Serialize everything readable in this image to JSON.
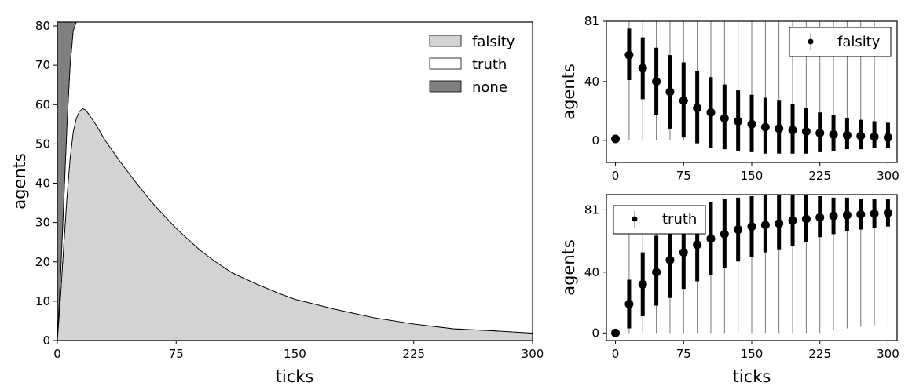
{
  "chart_data": [
    {
      "type": "area",
      "stacked": true,
      "xlabel": "ticks",
      "ylabel": "agents",
      "xlim": [
        0,
        300
      ],
      "ylim": [
        0,
        81
      ],
      "xticks": [
        "0",
        "75",
        "150",
        "225",
        "300"
      ],
      "yticks": [
        "0",
        "10",
        "20",
        "30",
        "40",
        "50",
        "60",
        "70",
        "80"
      ],
      "legend_position": "top-right",
      "x": [
        0,
        2,
        4,
        6,
        8,
        10,
        12,
        14,
        16,
        18,
        20,
        25,
        30,
        40,
        50,
        60,
        75,
        90,
        100,
        110,
        125,
        140,
        150,
        175,
        200,
        225,
        250,
        275,
        300
      ],
      "series": [
        {
          "name": "falsity",
          "color": "#d3d3d3",
          "values": [
            0,
            11,
            24,
            36,
            46,
            53,
            56.5,
            58.3,
            59,
            58.6,
            57.5,
            54.5,
            51,
            45.3,
            40,
            35,
            28.5,
            23,
            20,
            17.3,
            14.5,
            12,
            10.5,
            8,
            5.8,
            4.2,
            3,
            2.5,
            1.9
          ]
        },
        {
          "name": "truth",
          "color": "#ffffff",
          "values": [
            0,
            5,
            11,
            18,
            23.5,
            25.8,
            24.5,
            22.7,
            22,
            22.4,
            23.5,
            26.5,
            30,
            35.7,
            41,
            46,
            52.5,
            58,
            61,
            63.7,
            66.5,
            69,
            70.5,
            73,
            75.2,
            76.8,
            78,
            78.5,
            79.1
          ]
        },
        {
          "name": "none",
          "color": "#808080",
          "values": [
            81,
            65,
            46,
            27,
            11.5,
            2.2,
            0.5,
            0,
            0,
            0,
            0,
            0,
            0,
            0,
            0,
            0,
            0,
            0,
            0,
            0,
            0,
            0,
            0,
            0,
            0,
            0,
            0,
            0,
            0
          ]
        }
      ]
    },
    {
      "type": "errorbar",
      "xlabel": "",
      "ylabel": "agents",
      "xlim": [
        -10,
        310
      ],
      "ylim": [
        -15,
        81
      ],
      "xticks": [
        "0",
        "75",
        "150",
        "225",
        "300"
      ],
      "yticks": [
        "0",
        "40",
        "81"
      ],
      "legend_position": "top-right",
      "series": [
        {
          "name": "falsity",
          "x": [
            0,
            15,
            30,
            45,
            60,
            75,
            90,
            105,
            120,
            135,
            150,
            165,
            180,
            195,
            210,
            225,
            240,
            255,
            270,
            285,
            300
          ],
          "mean": [
            1,
            58,
            49,
            40,
            33,
            27,
            22,
            19,
            15,
            13,
            11,
            9,
            8,
            7,
            6,
            5,
            4,
            3.5,
            3,
            2.5,
            2
          ],
          "std_low": [
            0,
            41,
            28,
            17,
            8,
            2,
            -2,
            -5,
            -6,
            -7,
            -8,
            -9,
            -9,
            -9,
            -9,
            -8,
            -7,
            -6,
            -6,
            -5,
            -5
          ],
          "std_high": [
            2,
            76,
            70,
            63,
            58,
            53,
            47,
            43,
            38,
            34,
            31,
            29,
            27,
            25,
            22,
            19,
            17,
            15,
            14,
            13,
            12
          ],
          "min": [
            0,
            0,
            0,
            0,
            0,
            0,
            0,
            0,
            0,
            0,
            0,
            0,
            0,
            0,
            0,
            0,
            0,
            0,
            0,
            0,
            0
          ],
          "max": [
            2,
            81,
            81,
            81,
            81,
            81,
            81,
            81,
            81,
            81,
            81,
            81,
            81,
            81,
            81,
            81,
            81,
            81,
            81,
            81,
            81
          ]
        }
      ]
    },
    {
      "type": "errorbar",
      "xlabel": "ticks",
      "ylabel": "agents",
      "xlim": [
        -10,
        310
      ],
      "ylim": [
        -5,
        91
      ],
      "xticks": [
        "0",
        "75",
        "150",
        "225",
        "300"
      ],
      "yticks": [
        "0",
        "40",
        "81"
      ],
      "legend_position": "top-left",
      "series": [
        {
          "name": "truth",
          "x": [
            0,
            15,
            30,
            45,
            60,
            75,
            90,
            105,
            120,
            135,
            150,
            165,
            180,
            195,
            210,
            225,
            240,
            255,
            270,
            285,
            300
          ],
          "mean": [
            0,
            19,
            32,
            40,
            48,
            53,
            58,
            62,
            65,
            68,
            70,
            71,
            72,
            74,
            75,
            76,
            77,
            77.5,
            78,
            78.5,
            79
          ],
          "std_low": [
            0,
            3,
            11,
            18,
            23,
            29,
            34,
            38,
            43,
            47,
            50,
            53,
            55,
            57,
            60,
            63,
            65,
            67,
            68,
            69,
            70
          ],
          "std_high": [
            1,
            35,
            53,
            64,
            73,
            79,
            83,
            86,
            88,
            89,
            90,
            91,
            91,
            91,
            91,
            90,
            89,
            89,
            88,
            88,
            88
          ],
          "min": [
            0,
            0,
            0,
            0,
            0,
            0,
            0,
            0,
            0,
            0,
            0,
            0,
            0,
            0,
            0,
            0,
            2,
            3,
            4,
            5,
            6
          ],
          "max": [
            1,
            81,
            81,
            81,
            81,
            81,
            81,
            81,
            81,
            81,
            81,
            81,
            81,
            81,
            81,
            81,
            81,
            81,
            81,
            81,
            81
          ]
        }
      ]
    }
  ]
}
